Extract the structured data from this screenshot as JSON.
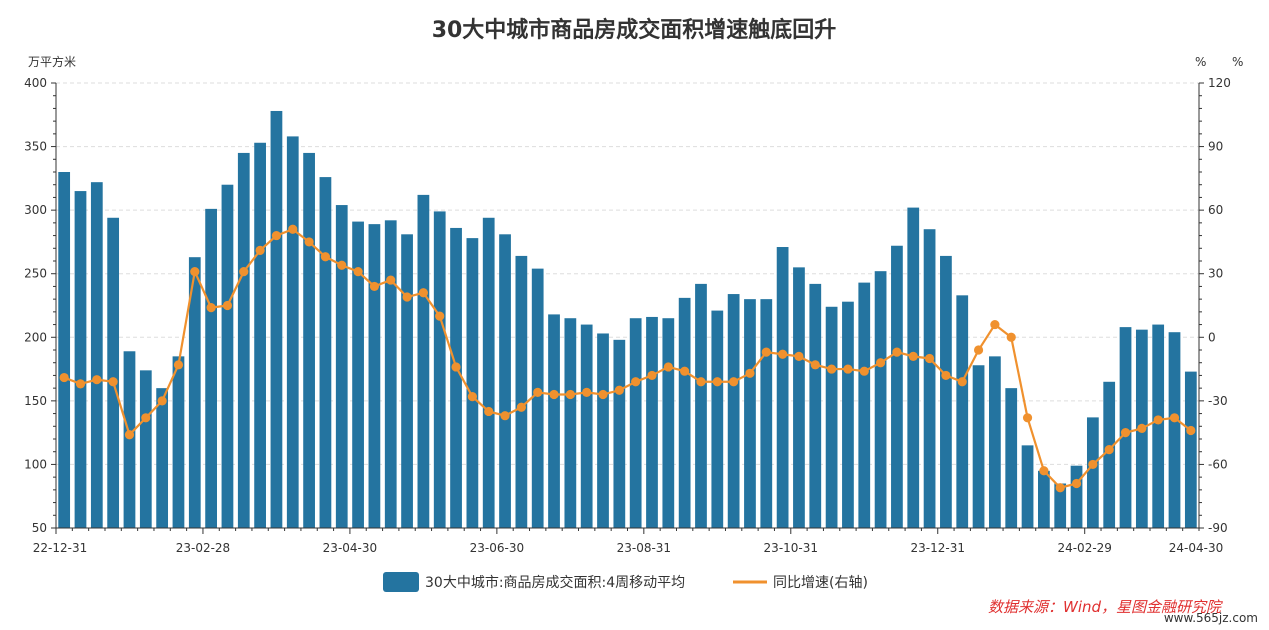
{
  "chart_data": {
    "type": "bar+line",
    "title": "30大中城市商品房成交面积增速触底回升",
    "left_axis": {
      "unit": "万平方米",
      "ylim": [
        50,
        400
      ],
      "ticks": [
        50,
        100,
        150,
        200,
        250,
        300,
        350,
        400
      ]
    },
    "right_axis": {
      "unit": "%",
      "unit_extra": "%",
      "ylim": [
        -90,
        120
      ],
      "ticks": [
        -90,
        -60,
        -30,
        0,
        30,
        60,
        90,
        120
      ]
    },
    "x_tick_labels": [
      "22-12-31",
      "23-02-28",
      "23-04-30",
      "23-06-30",
      "23-08-31",
      "23-10-31",
      "23-12-31",
      "24-02-29",
      "24-04-30"
    ],
    "x_tick_indices": [
      0,
      9,
      18,
      27,
      36,
      45,
      54,
      63,
      71
    ],
    "series": [
      {
        "name": "30大中城市:商品房成交面积:4周移动平均",
        "kind": "bar",
        "axis": "left",
        "color": "#2474a0",
        "values": [
          330,
          315,
          322,
          294,
          189,
          174,
          160,
          185,
          263,
          301,
          320,
          345,
          353,
          378,
          358,
          345,
          326,
          304,
          291,
          289,
          292,
          281,
          312,
          299,
          286,
          278,
          294,
          281,
          264,
          254,
          218,
          215,
          210,
          203,
          198,
          215,
          216,
          215,
          231,
          242,
          221,
          234,
          230,
          230,
          271,
          255,
          242,
          224,
          228,
          243,
          252,
          272,
          302,
          285,
          264,
          233,
          178,
          185,
          160,
          115,
          95,
          85,
          99,
          137,
          165,
          208,
          206,
          210,
          204,
          173
        ]
      },
      {
        "name": "同比增速(右轴)",
        "kind": "line",
        "axis": "right",
        "color": "#f0912e",
        "values": [
          -19,
          -22,
          -20,
          -21,
          -46,
          -38,
          -30,
          -13,
          31,
          14,
          15,
          31,
          41,
          48,
          51,
          45,
          38,
          34,
          31,
          24,
          27,
          19,
          21,
          10,
          -14,
          -28,
          -35,
          -37,
          -33,
          -26,
          -27,
          -27,
          -26,
          -27,
          -25,
          -21,
          -18,
          -14,
          -16,
          -21,
          -21,
          -21,
          -17,
          -7,
          -8,
          -9,
          -13,
          -15,
          -15,
          -16,
          -12,
          -7,
          -9,
          -10,
          -18,
          -21,
          -6,
          6,
          0,
          -38,
          -63,
          -71,
          -69,
          -60,
          -53,
          -45,
          -43,
          -39,
          -38,
          -44
        ]
      }
    ]
  },
  "footer": {
    "source": "数据来源：Wind，星图金融研究院",
    "watermark": "www.565jz.com"
  }
}
